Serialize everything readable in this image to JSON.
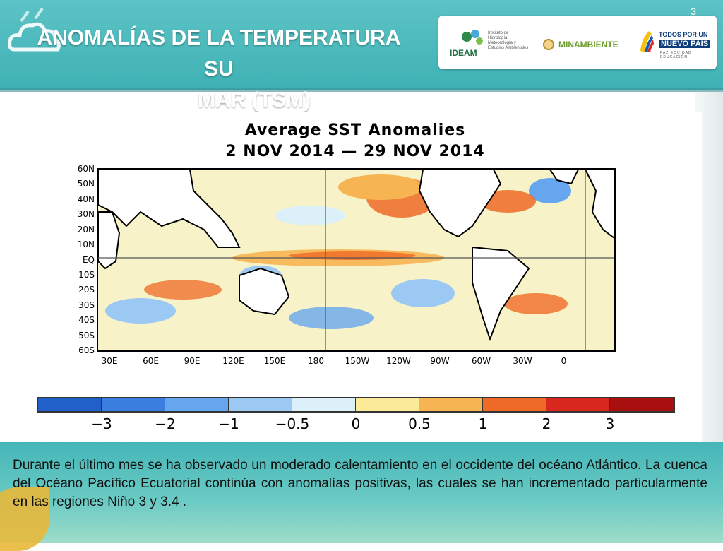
{
  "header": {
    "title_line1": "ANOMALÍAS DE LA TEMPERATURA SU",
    "title_line2": "MAR (TSM)",
    "slide_number": "3"
  },
  "logos": {
    "ideam_name": "IDEAM",
    "ideam_sub": "Instituto de Hidrología, Meteorología y Estudios Ambientales",
    "minambiente": "MINAMBIENTE",
    "todos_line1": "TODOS POR UN",
    "todos_line2": "NUEVO PAÍS",
    "todos_line3": "PAZ  EQUIDAD  EDUCACIÓN"
  },
  "chart_data": {
    "type": "heatmap",
    "title": "Average SST Anomalies",
    "subtitle": "2 NOV 2014 — 29 NOV 2014",
    "y_ticks": [
      "60N",
      "50N",
      "40N",
      "30N",
      "20N",
      "10N",
      "EQ",
      "10S",
      "20S",
      "30S",
      "40S",
      "50S",
      "60S"
    ],
    "x_ticks": [
      "30E",
      "60E",
      "90E",
      "120E",
      "150E",
      "180",
      "150W",
      "120W",
      "90W",
      "60W",
      "30W",
      "0"
    ],
    "colorbar": {
      "labels": [
        "−3",
        "−2",
        "−1",
        "−0.5",
        "0",
        "0.5",
        "1",
        "2",
        "3"
      ],
      "colors": [
        "#2060c8",
        "#3a7fe0",
        "#66a6ee",
        "#9cc8f4",
        "#dcf0fa",
        "#fbeb98",
        "#f6b552",
        "#ef6a26",
        "#d8271c",
        "#a81010"
      ]
    }
  },
  "description": "Durante el último mes se ha observado un moderado calentamiento en el occidente del océano Atlántico. La cuenca del Océano Pacífico Ecuatorial continúa con anomalías positivas, las cuales se han incrementado particularmente en las regiones Niño 3 y 3.4 ."
}
